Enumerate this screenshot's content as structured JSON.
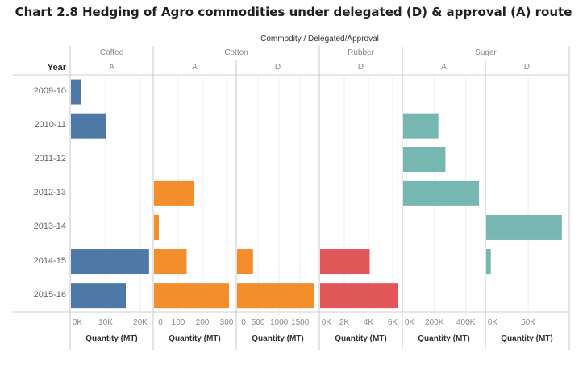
{
  "title": "Chart 2.8 Hedging of Agro commodities under delegated (D) & approval (A) route",
  "chart_data": {
    "type": "bar",
    "orientation": "horizontal",
    "title": "Chart 2.8 Hedging of Agro commodities under delegated (D) & approval (A) route",
    "column_header": "Commodity / Delegated/Approval",
    "row_header": "Year",
    "categories": [
      "2009-10",
      "2010-11",
      "2011-12",
      "2012-13",
      "2013-14",
      "2014-15",
      "2015-16"
    ],
    "panels": [
      {
        "commodity": "Coffee",
        "route": "A",
        "color": "#4e79a7",
        "xlabel": "Quantity (MT)",
        "xlim": [
          0,
          23000
        ],
        "ticks": [
          {
            "v": 0,
            "label": "0K"
          },
          {
            "v": 10000,
            "label": "10K"
          },
          {
            "v": 20000,
            "label": "20K"
          }
        ],
        "values": [
          3000,
          10000,
          null,
          null,
          null,
          22500,
          15800
        ]
      },
      {
        "commodity": "Cotton",
        "route": "A",
        "color": "#f28e2b",
        "xlabel": "Quantity (MT)",
        "xlim": [
          0,
          330
        ],
        "ticks": [
          {
            "v": 0,
            "label": "0"
          },
          {
            "v": 100,
            "label": "100"
          },
          {
            "v": 200,
            "label": "200"
          },
          {
            "v": 300,
            "label": "300"
          }
        ],
        "values": [
          null,
          null,
          null,
          165,
          20,
          135,
          310
        ]
      },
      {
        "commodity": "Cotton",
        "route": "D",
        "color": "#f28e2b",
        "xlabel": "Quantity (MT)",
        "xlim": [
          0,
          1900
        ],
        "ticks": [
          {
            "v": 0,
            "label": "0"
          },
          {
            "v": 500,
            "label": "500"
          },
          {
            "v": 1000,
            "label": "1000"
          },
          {
            "v": 1500,
            "label": "1500"
          }
        ],
        "values": [
          null,
          null,
          null,
          null,
          null,
          380,
          1830
        ]
      },
      {
        "commodity": "Rubber",
        "route": "D",
        "color": "#e15759",
        "xlabel": "Quantity (MT)",
        "xlim": [
          0,
          6600
        ],
        "ticks": [
          {
            "v": 0,
            "label": "0K"
          },
          {
            "v": 2000,
            "label": "2K"
          },
          {
            "v": 4000,
            "label": "4K"
          },
          {
            "v": 6000,
            "label": "6K"
          }
        ],
        "values": [
          null,
          null,
          null,
          null,
          null,
          4100,
          6400
        ]
      },
      {
        "commodity": "Sugar",
        "route": "A",
        "color": "#76b7b2",
        "xlabel": "Quantity (MT)",
        "xlim": [
          0,
          510000
        ],
        "ticks": [
          {
            "v": 0,
            "label": "0K"
          },
          {
            "v": 200000,
            "label": "200K"
          },
          {
            "v": 400000,
            "label": "400K"
          }
        ],
        "values": [
          null,
          225000,
          270000,
          485000,
          null,
          null,
          null
        ]
      },
      {
        "commodity": "Sugar",
        "route": "D",
        "color": "#76b7b2",
        "xlabel": "Quantity (MT)",
        "xlim": [
          0,
          95000
        ],
        "ticks": [
          {
            "v": 0,
            "label": "0K"
          },
          {
            "v": 50000,
            "label": "50K"
          }
        ],
        "values": [
          null,
          null,
          null,
          null,
          90000,
          5500,
          null
        ]
      }
    ],
    "commodities": [
      "Coffee",
      "Cotton",
      "Rubber",
      "Sugar"
    ],
    "grid": true
  }
}
